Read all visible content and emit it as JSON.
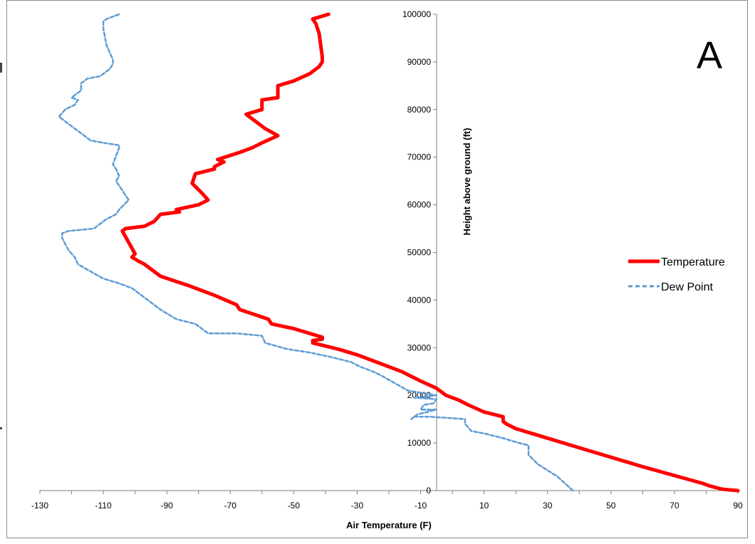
{
  "chart_data": {
    "type": "line",
    "panel_label": "A",
    "xlabel": "Air Temperature (F)",
    "ylabel": "Height above ground (ft)",
    "xlim": [
      -130,
      90
    ],
    "ylim": [
      0,
      100000
    ],
    "x_ticks": [
      -130,
      -110,
      -90,
      -70,
      -50,
      -30,
      -10,
      10,
      30,
      50,
      70,
      90
    ],
    "y_ticks": [
      0,
      10000,
      20000,
      30000,
      40000,
      50000,
      60000,
      70000,
      80000,
      90000,
      100000
    ],
    "grid": false,
    "legend_position": "right",
    "series": [
      {
        "name": "Temperature",
        "color": "#ff0000",
        "style": "solid",
        "points": [
          [
            90,
            0
          ],
          [
            85,
            300
          ],
          [
            81,
            1000
          ],
          [
            79,
            1500
          ],
          [
            60,
            5000
          ],
          [
            45,
            8000
          ],
          [
            35,
            10000
          ],
          [
            25,
            12000
          ],
          [
            20,
            13000
          ],
          [
            17,
            14000
          ],
          [
            16,
            14500
          ],
          [
            16,
            15500
          ],
          [
            10,
            16500
          ],
          [
            5,
            18000
          ],
          [
            2,
            19000
          ],
          [
            -2,
            20000
          ],
          [
            -5,
            21500
          ],
          [
            -10,
            23000
          ],
          [
            -16,
            25000
          ],
          [
            -22,
            26500
          ],
          [
            -30,
            28500
          ],
          [
            -36,
            29700
          ],
          [
            -44,
            31000
          ],
          [
            -44,
            31500
          ],
          [
            -41,
            31800
          ],
          [
            -41,
            32200
          ],
          [
            -50,
            34000
          ],
          [
            -57,
            35000
          ],
          [
            -58,
            36000
          ],
          [
            -67,
            38000
          ],
          [
            -68,
            39000
          ],
          [
            -75,
            41000
          ],
          [
            -83,
            43000
          ],
          [
            -92,
            45000
          ],
          [
            -94,
            46000
          ],
          [
            -97,
            47500
          ],
          [
            -99,
            48200
          ],
          [
            -101,
            49000
          ],
          [
            -100,
            49700
          ],
          [
            -104,
            54500
          ],
          [
            -103,
            55000
          ],
          [
            -97,
            55500
          ],
          [
            -94,
            56500
          ],
          [
            -92,
            58000
          ],
          [
            -86,
            58500
          ],
          [
            -87,
            59000
          ],
          [
            -80,
            60000
          ],
          [
            -77,
            61000
          ],
          [
            -79,
            62500
          ],
          [
            -82,
            64500
          ],
          [
            -81,
            66500
          ],
          [
            -75,
            67500
          ],
          [
            -75,
            68000
          ],
          [
            -72,
            69000
          ],
          [
            -74,
            69500
          ],
          [
            -67,
            71000
          ],
          [
            -63,
            72000
          ],
          [
            -60,
            73000
          ],
          [
            -55,
            74500
          ],
          [
            -59,
            76000
          ],
          [
            -63,
            78000
          ],
          [
            -65,
            79000
          ],
          [
            -60,
            80000
          ],
          [
            -60,
            82000
          ],
          [
            -55,
            82500
          ],
          [
            -55,
            85000
          ],
          [
            -50,
            86000
          ],
          [
            -45,
            87500
          ],
          [
            -42,
            89000
          ],
          [
            -41,
            90000
          ],
          [
            -41,
            91000
          ],
          [
            -42,
            96000
          ],
          [
            -43,
            98000
          ],
          [
            -44,
            99000
          ],
          [
            -39,
            100000
          ]
        ]
      },
      {
        "name": "Dew Point",
        "color": "#5b9bd5",
        "style": "dashed",
        "points": [
          [
            38,
            0
          ],
          [
            33,
            3000
          ],
          [
            27,
            5500
          ],
          [
            24,
            7500
          ],
          [
            24,
            9500
          ],
          [
            21,
            10000
          ],
          [
            16,
            11000
          ],
          [
            10,
            12000
          ],
          [
            6,
            12500
          ],
          [
            4,
            14000
          ],
          [
            4,
            15000
          ],
          [
            -7,
            15500
          ],
          [
            -12,
            15500
          ],
          [
            -13,
            15000
          ],
          [
            -11,
            16000
          ],
          [
            -8,
            16500
          ],
          [
            -5,
            17000
          ],
          [
            -10,
            17000
          ],
          [
            -9,
            18000
          ],
          [
            -6,
            18300
          ],
          [
            -5,
            19200
          ],
          [
            -12,
            19500
          ],
          [
            -5,
            20000
          ],
          [
            -14,
            21000
          ],
          [
            -18,
            22500
          ],
          [
            -22,
            24000
          ],
          [
            -25,
            25000
          ],
          [
            -29,
            26000
          ],
          [
            -32,
            27000
          ],
          [
            -38,
            28000
          ],
          [
            -45,
            29000
          ],
          [
            -52,
            29700
          ],
          [
            -59,
            31000
          ],
          [
            -60,
            32500
          ],
          [
            -68,
            33000
          ],
          [
            -77,
            33000
          ],
          [
            -81,
            35000
          ],
          [
            -87,
            36000
          ],
          [
            -92,
            38000
          ],
          [
            -96,
            40000
          ],
          [
            -99,
            41500
          ],
          [
            -101,
            42500
          ],
          [
            -105,
            43500
          ],
          [
            -110,
            44500
          ],
          [
            -114,
            46000
          ],
          [
            -118,
            47500
          ],
          [
            -119,
            49000
          ],
          [
            -121,
            50500
          ],
          [
            -123,
            53000
          ],
          [
            -123,
            54000
          ],
          [
            -121,
            54500
          ],
          [
            -113,
            55000
          ],
          [
            -109,
            57000
          ],
          [
            -106,
            58000
          ],
          [
            -105,
            59000
          ],
          [
            -102,
            61000
          ],
          [
            -106,
            65000
          ],
          [
            -105,
            66000
          ],
          [
            -106,
            67500
          ],
          [
            -107,
            68500
          ],
          [
            -105,
            72000
          ],
          [
            -105,
            72500
          ],
          [
            -110,
            73000
          ],
          [
            -114,
            73500
          ],
          [
            -117,
            75000
          ],
          [
            -119,
            76000
          ],
          [
            -123,
            78000
          ],
          [
            -124,
            78500
          ],
          [
            -122,
            80000
          ],
          [
            -119,
            81000
          ],
          [
            -118,
            82000
          ],
          [
            -120,
            82500
          ],
          [
            -117,
            84000
          ],
          [
            -117,
            85500
          ],
          [
            -115,
            86500
          ],
          [
            -111,
            87000
          ],
          [
            -108,
            88500
          ],
          [
            -107,
            89500
          ],
          [
            -107,
            90500
          ],
          [
            -109,
            93500
          ],
          [
            -110,
            97000
          ],
          [
            -110,
            98500
          ],
          [
            -109,
            99000
          ],
          [
            -105,
            100000
          ]
        ]
      }
    ]
  }
}
